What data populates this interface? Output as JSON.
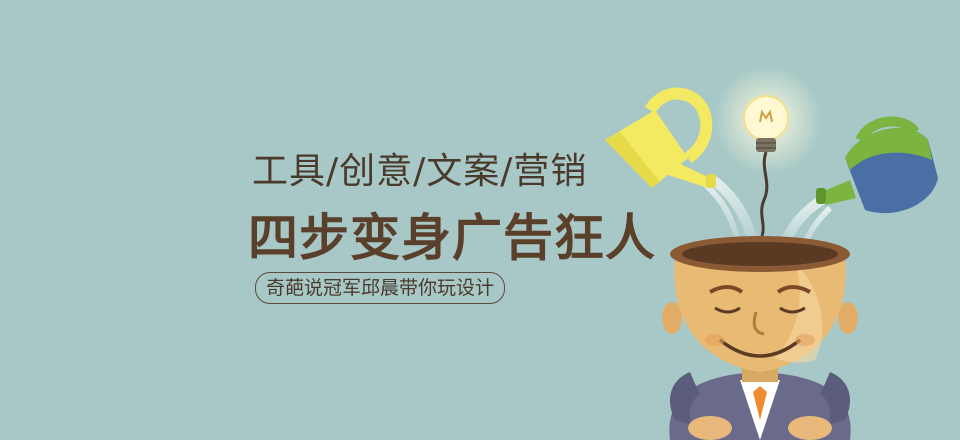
{
  "banner": {
    "subtitle": "工具/创意/文案/营销",
    "headline": "四步变身广告狂人",
    "tag": "奇葩说冠军邱晨带你玩设计"
  }
}
